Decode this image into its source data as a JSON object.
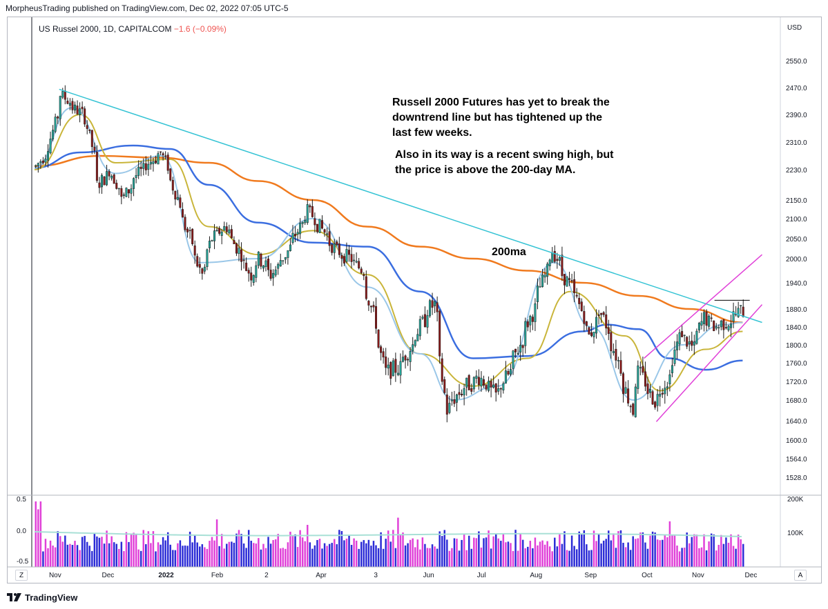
{
  "header": {
    "published_by": "MorpheusTrading published on TradingView.com, Dec 02, 2022 07:05 UTC-5"
  },
  "symbol": {
    "name": "US Russel 2000, 1D, CAPITALCOM",
    "change": "−1.6 (−0.09%)"
  },
  "annotations": {
    "note1": "Russell 2000 Futures has yet to break the\ndowntrend line but has tightened up the\nlast few weeks.",
    "note2": "Also in its way is a recent swing high, but\nthe price is above the 200-day MA.",
    "ma_tag": "200ma"
  },
  "footer": {
    "brand": "TradingView"
  },
  "corner_buttons": {
    "left": "Z",
    "right": "A"
  },
  "colors": {
    "up": "#26a69a",
    "down": "#8b1a1a",
    "candle_dark": "#1a1a1a",
    "ma_fast": "#9ac7e8",
    "ma_mid": "#c9b53a",
    "ma_50": "#3b6ee0",
    "ma_200": "#f07a1e",
    "trendline": "#34c3d4",
    "channel": "#e040d8",
    "resistance": "#000000",
    "vol_blue": "#2b2bd6",
    "vol_pink": "#e040d8",
    "vol_ma": "#a8e0d6"
  },
  "chart_data": {
    "type": "candlestick",
    "currency_label": "USD",
    "price_ticks": [
      2550.0,
      2470.0,
      2390.0,
      2310.0,
      2230.0,
      2150.0,
      2100.0,
      2050.0,
      2000.0,
      1940.0,
      1880.0,
      1840.0,
      1800.0,
      1760.0,
      1720.0,
      1680.0,
      1640.0,
      1600.0,
      1564.0,
      1528.0
    ],
    "price_tick_labels": [
      "2550.0",
      "2470.0",
      "2390.0",
      "2310.0",
      "2230.0",
      "2150.0",
      "2100.0",
      "2050.0",
      "2000.0",
      "1940.0",
      "1880.0",
      "1840.0",
      "1800.0",
      "1760.0",
      "1720.0",
      "1680.0",
      "1640.0",
      "1600.0",
      "1564.0",
      "1528.0"
    ],
    "time_labels": [
      "Nov",
      "Dec",
      "2022",
      "Feb",
      "2",
      "Apr",
      "3",
      "Jun",
      "Jul",
      "Aug",
      "Sep",
      "Oct",
      "Nov",
      "Dec"
    ],
    "volume_axis_labels": [
      "200K",
      "100K"
    ],
    "oscillator_labels": [
      "0.5",
      "0.0",
      "-0.5"
    ],
    "anchors": [
      [
        "2021-10-25",
        2240
      ],
      [
        "2021-11-01",
        2300
      ],
      [
        "2021-11-08",
        2450
      ],
      [
        "2021-11-15",
        2410
      ],
      [
        "2021-11-22",
        2380
      ],
      [
        "2021-11-29",
        2190
      ],
      [
        "2021-12-06",
        2230
      ],
      [
        "2021-12-13",
        2150
      ],
      [
        "2021-12-20",
        2210
      ],
      [
        "2021-12-28",
        2250
      ],
      [
        "2022-01-04",
        2280
      ],
      [
        "2022-01-10",
        2200
      ],
      [
        "2022-01-18",
        2080
      ],
      [
        "2022-01-27",
        1960
      ],
      [
        "2022-02-02",
        2050
      ],
      [
        "2022-02-10",
        2080
      ],
      [
        "2022-02-24",
        1960
      ],
      [
        "2022-03-01",
        2000
      ],
      [
        "2022-03-08",
        1960
      ],
      [
        "2022-03-16",
        2010
      ],
      [
        "2022-03-29",
        2120
      ],
      [
        "2022-04-05",
        2080
      ],
      [
        "2022-04-14",
        2020
      ],
      [
        "2022-04-22",
        2000
      ],
      [
        "2022-04-29",
        1970
      ],
      [
        "2022-05-06",
        1850
      ],
      [
        "2022-05-12",
        1740
      ],
      [
        "2022-05-20",
        1750
      ],
      [
        "2022-05-27",
        1800
      ],
      [
        "2022-06-06",
        1880
      ],
      [
        "2022-06-09",
        1890
      ],
      [
        "2022-06-16",
        1660
      ],
      [
        "2022-06-24",
        1700
      ],
      [
        "2022-07-05",
        1730
      ],
      [
        "2022-07-14",
        1690
      ],
      [
        "2022-07-22",
        1740
      ],
      [
        "2022-07-29",
        1810
      ],
      [
        "2022-08-05",
        1880
      ],
      [
        "2022-08-16",
        2020
      ],
      [
        "2022-08-22",
        1960
      ],
      [
        "2022-08-30",
        1900
      ],
      [
        "2022-09-06",
        1820
      ],
      [
        "2022-09-12",
        1880
      ],
      [
        "2022-09-20",
        1790
      ],
      [
        "2022-09-30",
        1660
      ],
      [
        "2022-10-04",
        1740
      ],
      [
        "2022-10-13",
        1680
      ],
      [
        "2022-10-21",
        1730
      ],
      [
        "2022-10-28",
        1830
      ],
      [
        "2022-11-04",
        1790
      ],
      [
        "2022-11-10",
        1860
      ],
      [
        "2022-11-17",
        1840
      ],
      [
        "2022-11-25",
        1855
      ],
      [
        "2022-12-01",
        1875
      ]
    ],
    "ma_200": [
      [
        "2021-10-25",
        2240
      ],
      [
        "2021-12-01",
        2270
      ],
      [
        "2022-01-03",
        2265
      ],
      [
        "2022-02-01",
        2250
      ],
      [
        "2022-03-01",
        2200
      ],
      [
        "2022-04-01",
        2150
      ],
      [
        "2022-05-02",
        2080
      ],
      [
        "2022-06-01",
        2030
      ],
      [
        "2022-07-01",
        2000
      ],
      [
        "2022-08-01",
        1970
      ],
      [
        "2022-09-01",
        1940
      ],
      [
        "2022-10-03",
        1910
      ],
      [
        "2022-11-01",
        1880
      ],
      [
        "2022-12-01",
        1850
      ]
    ],
    "ma_50": [
      [
        "2021-10-25",
        2235
      ],
      [
        "2021-11-20",
        2280
      ],
      [
        "2021-12-20",
        2300
      ],
      [
        "2022-01-10",
        2290
      ],
      [
        "2022-02-01",
        2190
      ],
      [
        "2022-03-01",
        2090
      ],
      [
        "2022-04-01",
        2040
      ],
      [
        "2022-05-02",
        2030
      ],
      [
        "2022-06-01",
        1920
      ],
      [
        "2022-07-01",
        1770
      ],
      [
        "2022-08-01",
        1775
      ],
      [
        "2022-09-01",
        1830
      ],
      [
        "2022-09-15",
        1845
      ],
      [
        "2022-10-03",
        1835
      ],
      [
        "2022-10-20",
        1770
      ],
      [
        "2022-11-10",
        1745
      ],
      [
        "2022-12-01",
        1765
      ]
    ],
    "ma_mid": [
      [
        "2021-10-25",
        2230
      ],
      [
        "2021-11-20",
        2390
      ],
      [
        "2021-12-10",
        2250
      ],
      [
        "2022-01-10",
        2260
      ],
      [
        "2022-02-01",
        2080
      ],
      [
        "2022-03-01",
        2010
      ],
      [
        "2022-04-01",
        2070
      ],
      [
        "2022-05-02",
        1960
      ],
      [
        "2022-06-01",
        1780
      ],
      [
        "2022-07-01",
        1710
      ],
      [
        "2022-08-01",
        1770
      ],
      [
        "2022-08-25",
        1920
      ],
      [
        "2022-09-25",
        1820
      ],
      [
        "2022-10-15",
        1700
      ],
      [
        "2022-11-10",
        1790
      ],
      [
        "2022-12-01",
        1830
      ]
    ],
    "ma_fast": [
      [
        "2021-10-25",
        2235
      ],
      [
        "2021-11-15",
        2410
      ],
      [
        "2021-12-10",
        2220
      ],
      [
        "2022-01-05",
        2270
      ],
      [
        "2022-01-27",
        1990
      ],
      [
        "2022-03-01",
        2000
      ],
      [
        "2022-04-01",
        2100
      ],
      [
        "2022-05-02",
        1930
      ],
      [
        "2022-06-01",
        1780
      ],
      [
        "2022-06-20",
        1680
      ],
      [
        "2022-07-15",
        1710
      ],
      [
        "2022-08-16",
        1990
      ],
      [
        "2022-09-06",
        1840
      ],
      [
        "2022-09-30",
        1680
      ],
      [
        "2022-10-28",
        1800
      ],
      [
        "2022-11-20",
        1845
      ],
      [
        "2022-12-01",
        1850
      ]
    ],
    "trendline": {
      "from": [
        "2021-11-08",
        2465
      ],
      "to": [
        "2022-12-12",
        1850
      ]
    },
    "channel_upper": {
      "from": [
        "2022-10-06",
        1770
      ],
      "to": [
        "2022-12-12",
        2010
      ]
    },
    "channel_lower": {
      "from": [
        "2022-10-13",
        1638
      ],
      "to": [
        "2022-12-12",
        1890
      ]
    },
    "resistance": {
      "from": [
        "2022-11-15",
        1900
      ],
      "to": [
        "2022-12-05",
        1900
      ]
    },
    "date_range": [
      "2021-10-25",
      "2022-12-02"
    ]
  }
}
